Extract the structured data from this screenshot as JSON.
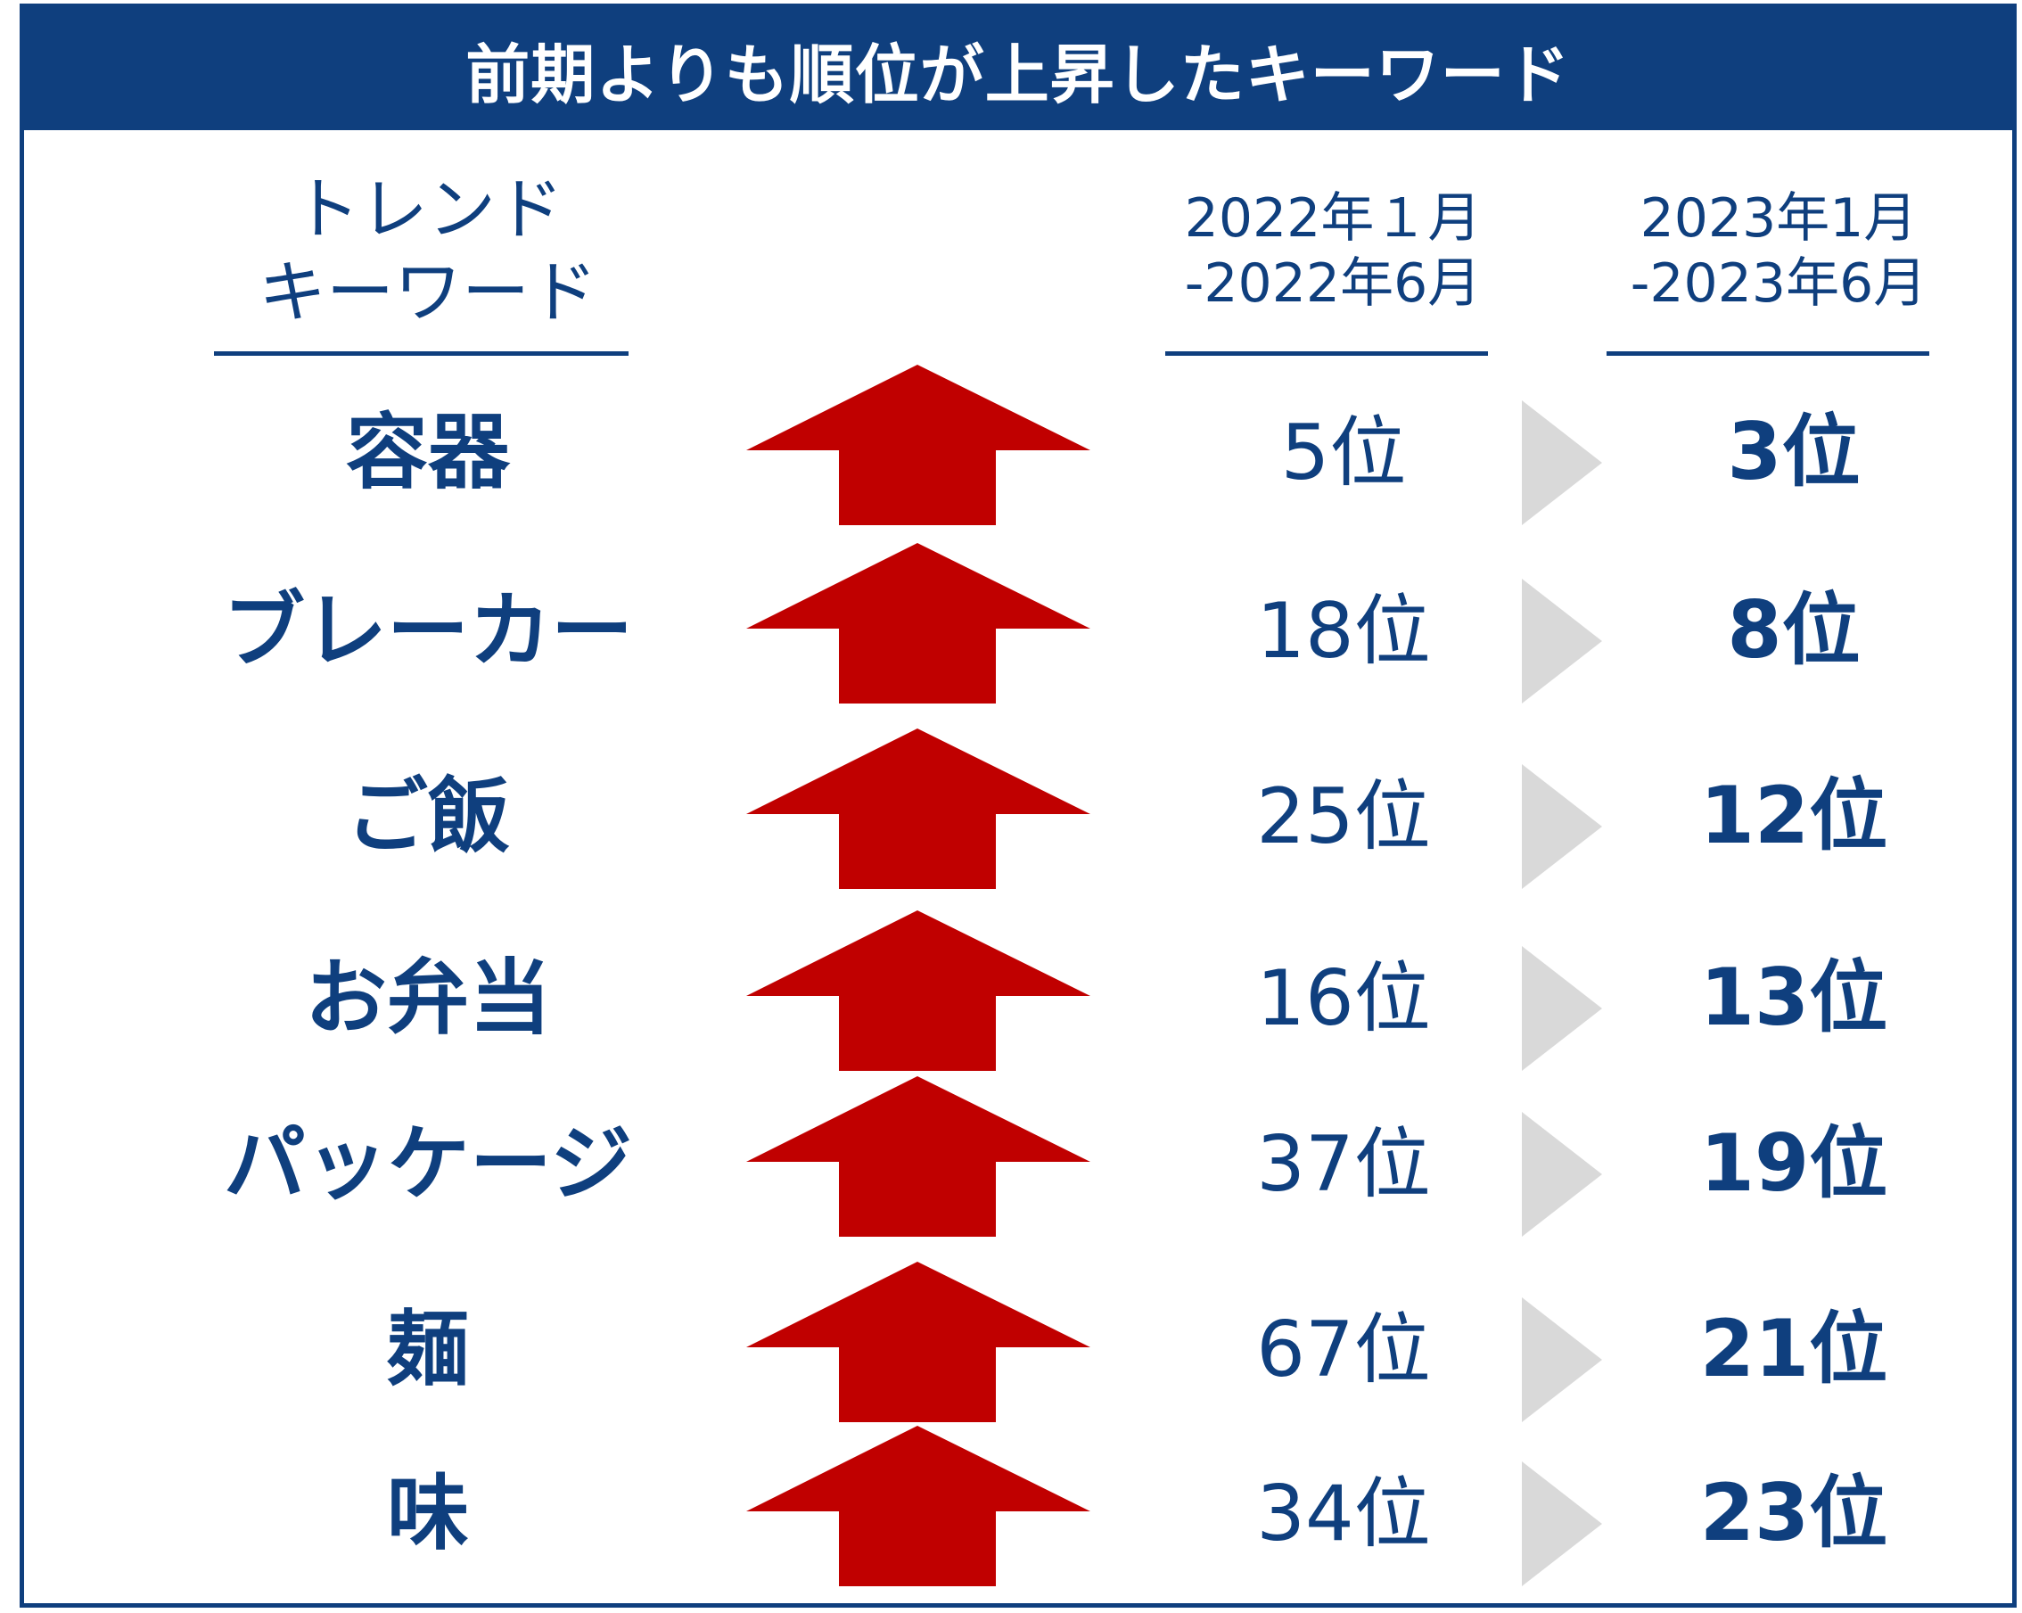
{
  "title": "前期よりも順位が上昇したキーワード",
  "headers": {
    "keyword_line1": "トレンド",
    "keyword_line2": "キーワード",
    "period1_line1": "2022年１月",
    "period1_line2": "-2022年6月",
    "period2_line1": "2023年1月",
    "period2_line2": "-2023年6月"
  },
  "colors": {
    "primary": "#0f3f7e",
    "arrow": "#c00000",
    "chevron": "#d9d9d9"
  },
  "icons": {
    "up": "up-arrow-icon",
    "next": "chevron-right-icon"
  },
  "rows": [
    {
      "keyword": "容器",
      "prev_rank": "5位",
      "curr_rank": "3位"
    },
    {
      "keyword": "ブレーカー",
      "prev_rank": "18位",
      "curr_rank": "8位"
    },
    {
      "keyword": "ご飯",
      "prev_rank": "25位",
      "curr_rank": "12位"
    },
    {
      "keyword": "お弁当",
      "prev_rank": "16位",
      "curr_rank": "13位"
    },
    {
      "keyword": "パッケージ",
      "prev_rank": "37位",
      "curr_rank": "19位"
    },
    {
      "keyword": "麺",
      "prev_rank": "67位",
      "curr_rank": "21位"
    },
    {
      "keyword": "味",
      "prev_rank": "34位",
      "curr_rank": "23位"
    }
  ]
}
